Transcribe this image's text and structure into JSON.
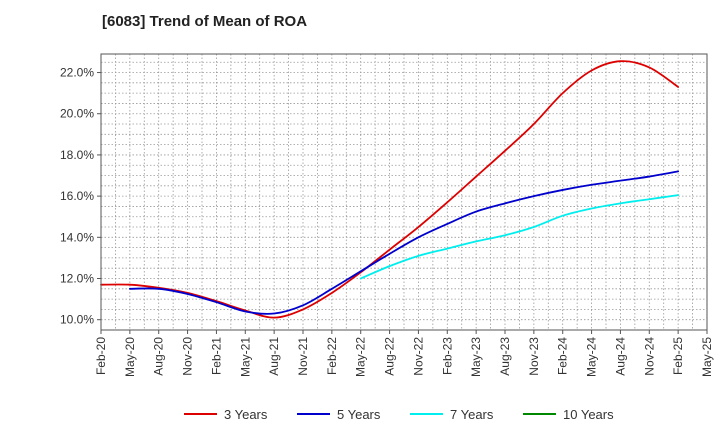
{
  "chart_data": {
    "type": "line",
    "title": "[6083]  Trend of Mean of ROA",
    "xlabel": "",
    "ylabel": "",
    "x_categories": [
      "Feb-20",
      "May-20",
      "Aug-20",
      "Nov-20",
      "Feb-21",
      "May-21",
      "Aug-21",
      "Nov-21",
      "Feb-22",
      "May-22",
      "Aug-22",
      "Nov-22",
      "Feb-23",
      "May-23",
      "Aug-23",
      "Nov-23",
      "Feb-24",
      "May-24",
      "Aug-24",
      "Nov-24",
      "Feb-25",
      "May-25"
    ],
    "ylim": [
      9.5,
      22.9
    ],
    "y_ticks": [
      10.0,
      12.0,
      14.0,
      16.0,
      18.0,
      20.0,
      22.0
    ],
    "y_tick_labels": [
      "10.0%",
      "12.0%",
      "14.0%",
      "16.0%",
      "18.0%",
      "20.0%",
      "22.0%"
    ],
    "grid": true,
    "legend_position": "bottom",
    "series": [
      {
        "name": "3 Years",
        "color": "#dd0000",
        "x": [
          0,
          1,
          2,
          3,
          4,
          5,
          6,
          7,
          8,
          9,
          10,
          11,
          12,
          13,
          14,
          15,
          16,
          17,
          18,
          19,
          20
        ],
        "values": [
          11.7,
          11.7,
          11.55,
          11.3,
          10.9,
          10.45,
          10.1,
          10.5,
          11.3,
          12.3,
          13.4,
          14.5,
          15.7,
          16.95,
          18.2,
          19.5,
          21.0,
          22.1,
          22.55,
          22.25,
          21.3
        ]
      },
      {
        "name": "5 Years",
        "color": "#0000cc",
        "x": [
          1,
          2,
          3,
          4,
          5,
          6,
          7,
          8,
          9,
          10,
          11,
          12,
          13,
          14,
          15,
          16,
          17,
          18,
          19,
          20
        ],
        "values": [
          11.5,
          11.5,
          11.25,
          10.85,
          10.4,
          10.3,
          10.7,
          11.5,
          12.35,
          13.2,
          14.0,
          14.65,
          15.25,
          15.65,
          16.0,
          16.3,
          16.55,
          16.75,
          16.95,
          17.2
        ]
      },
      {
        "name": "7 Years",
        "color": "#00eeee",
        "x": [
          9,
          10,
          11,
          12,
          13,
          14,
          15,
          16,
          17,
          18,
          19,
          20
        ],
        "values": [
          12.0,
          12.6,
          13.1,
          13.45,
          13.8,
          14.1,
          14.5,
          15.05,
          15.4,
          15.65,
          15.85,
          16.05
        ]
      },
      {
        "name": "10 Years",
        "color": "#008800",
        "x": [],
        "values": []
      }
    ]
  }
}
